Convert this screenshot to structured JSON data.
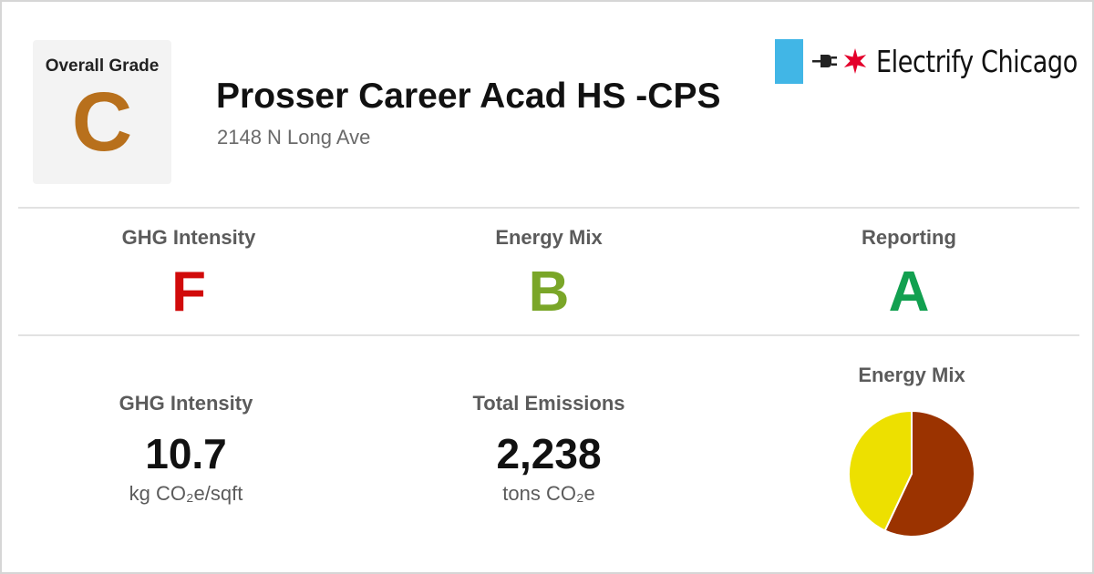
{
  "overall": {
    "label": "Overall Grade",
    "grade": "C",
    "color": "#b8701c"
  },
  "building": {
    "name": "Prosser Career Acad HS -CPS",
    "address": "2148 N Long Ave"
  },
  "brand": {
    "name": "Electrify Chicago",
    "flag_color": "#41b6e6",
    "star_color": "#e4002b",
    "icons": [
      "chicago-flag-icon",
      "plug-icon",
      "star-icon"
    ]
  },
  "subgrades": [
    {
      "label": "GHG Intensity",
      "grade": "F",
      "color": "#d10a0a"
    },
    {
      "label": "Energy Mix",
      "grade": "B",
      "color": "#7aa628"
    },
    {
      "label": "Reporting",
      "grade": "A",
      "color": "#12a050"
    }
  ],
  "metrics": {
    "ghg_intensity": {
      "label": "GHG Intensity",
      "value": "10.7",
      "unit": "kg CO₂e/sqft"
    },
    "total_emissions": {
      "label": "Total Emissions",
      "value": "2,238",
      "unit": "tons CO₂e"
    }
  },
  "energy_mix": {
    "label": "Energy Mix",
    "chart_data": {
      "type": "pie",
      "values": [
        0.57,
        0.43
      ],
      "colors": [
        "#9b3300",
        "#ede000"
      ]
    }
  }
}
